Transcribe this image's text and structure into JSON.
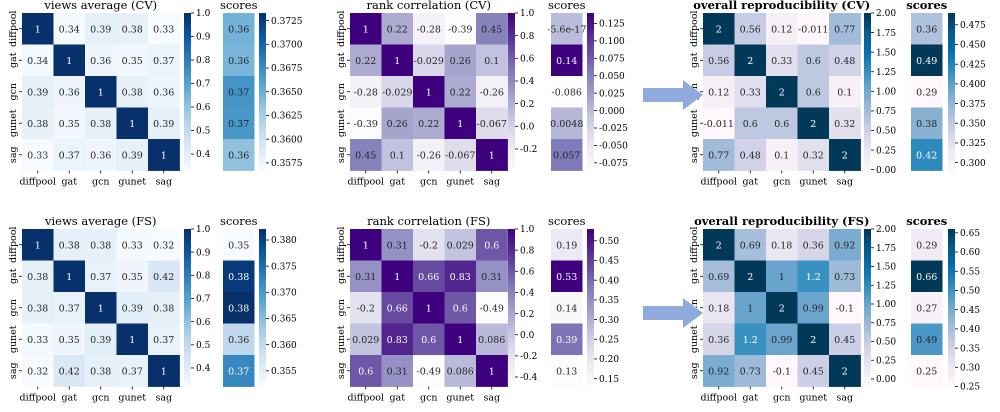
{
  "colormaps": {
    "Blues": [
      "#f7fbff",
      "#deebf7",
      "#c6dbef",
      "#9ecae1",
      "#6baed6",
      "#4292c6",
      "#2171b5",
      "#08519c",
      "#08306b"
    ],
    "Purples": [
      "#fcfbfd",
      "#efedf5",
      "#dadaeb",
      "#bcbddc",
      "#9e9ac8",
      "#807dba",
      "#6a51a3",
      "#54278f",
      "#3f007d"
    ],
    "PuBu": [
      "#fff7fb",
      "#ece7f2",
      "#d0d1e6",
      "#a6bddb",
      "#74a9cf",
      "#3690c0",
      "#0570b0",
      "#045a8d",
      "#023858"
    ]
  },
  "arrow_color": "#8faadc",
  "chart_data": [
    {
      "type": "heatmap",
      "id": "cv-views",
      "title": "views average (CV)",
      "title_bold": false,
      "cmap": "Blues",
      "categories": [
        "diffpool",
        "gat",
        "gcn",
        "gunet",
        "sag"
      ],
      "matrix": [
        [
          1,
          0.34,
          0.39,
          0.38,
          0.33
        ],
        [
          0.34,
          1,
          0.36,
          0.35,
          0.37
        ],
        [
          0.39,
          0.36,
          1,
          0.38,
          0.36
        ],
        [
          0.38,
          0.35,
          0.38,
          1,
          0.39
        ],
        [
          0.33,
          0.37,
          0.36,
          0.39,
          1
        ]
      ],
      "labels": [
        [
          "1",
          "0.34",
          "0.39",
          "0.38",
          "0.33"
        ],
        [
          "0.34",
          "1",
          "0.36",
          "0.35",
          "0.37"
        ],
        [
          "0.39",
          "0.36",
          "1",
          "0.38",
          "0.36"
        ],
        [
          "0.38",
          "0.35",
          "0.38",
          "1",
          "0.39"
        ],
        [
          "0.33",
          "0.37",
          "0.36",
          "0.39",
          "1"
        ]
      ],
      "vmin": 0.33,
      "vmax": 1.0,
      "colorbar_ticks": [
        "0.4",
        "0.5",
        "0.6",
        "0.7",
        "0.8",
        "0.9",
        "1.0"
      ],
      "scores": {
        "title": "scores",
        "values": [
          0.3647,
          0.3644,
          0.3669,
          0.3667,
          0.3635
        ],
        "labels": [
          "0.36",
          "0.36",
          "0.37",
          "0.37",
          "0.36"
        ],
        "vmin": 0.3567,
        "vmax": 0.3733,
        "colorbar_ticks": [
          "0.3575",
          "0.3600",
          "0.3625",
          "0.3650",
          "0.3675",
          "0.3700",
          "0.3725"
        ]
      }
    },
    {
      "type": "heatmap",
      "id": "cv-rank",
      "title": "rank correlation (CV)",
      "title_bold": false,
      "cmap": "Purples",
      "categories": [
        "diffpool",
        "gat",
        "gcn",
        "gunet",
        "sag"
      ],
      "matrix": [
        [
          1,
          0.22,
          -0.28,
          -0.39,
          0.45
        ],
        [
          0.22,
          1,
          -0.029,
          0.26,
          0.1
        ],
        [
          -0.28,
          -0.029,
          1,
          0.22,
          -0.26
        ],
        [
          -0.39,
          0.26,
          0.22,
          1,
          -0.067
        ],
        [
          0.45,
          0.1,
          -0.26,
          -0.067,
          1
        ]
      ],
      "labels": [
        [
          "1",
          "0.22",
          "-0.28",
          "-0.39",
          "0.45"
        ],
        [
          "0.22",
          "1",
          "-0.029",
          "0.26",
          "0.1"
        ],
        [
          "-0.28",
          "-0.029",
          "1",
          "0.22",
          "-0.26"
        ],
        [
          "-0.39",
          "0.26",
          "0.22",
          "1",
          "-0.067"
        ],
        [
          "0.45",
          "0.1",
          "-0.26",
          "-0.067",
          "1"
        ]
      ],
      "vmin": -0.39,
      "vmax": 1.0,
      "colorbar_ticks": [
        "-0.2",
        "0.0",
        "0.2",
        "0.4",
        "0.6",
        "0.8",
        "1.0"
      ],
      "scores": {
        "title": "scores",
        "values": [
          -5.6e-17,
          0.14,
          -0.086,
          0.0048,
          0.057
        ],
        "labels": [
          "-5.6e-17",
          "0.14",
          "-0.086",
          "0.0048",
          "0.057"
        ],
        "vmin": -0.086,
        "vmax": 0.14,
        "colorbar_ticks": [
          "-0.075",
          "-0.050",
          "-0.025",
          "0.000",
          "0.025",
          "0.050",
          "0.075",
          "0.100",
          "0.125"
        ]
      }
    },
    {
      "type": "heatmap",
      "id": "cv-overall",
      "title": "overall reproducibility (CV)",
      "title_bold": true,
      "cmap": "PuBu",
      "categories": [
        "diffpool",
        "gat",
        "gcn",
        "gunet",
        "sag"
      ],
      "matrix": [
        [
          2,
          0.56,
          0.12,
          -0.011,
          0.77
        ],
        [
          0.56,
          2,
          0.33,
          0.6,
          0.48
        ],
        [
          0.12,
          0.33,
          2,
          0.6,
          0.1
        ],
        [
          -0.011,
          0.6,
          0.6,
          2,
          0.32
        ],
        [
          0.77,
          0.48,
          0.1,
          0.32,
          2
        ]
      ],
      "labels": [
        [
          "2",
          "0.56",
          "0.12",
          "-0.011",
          "0.77"
        ],
        [
          "0.56",
          "2",
          "0.33",
          "0.6",
          "0.48"
        ],
        [
          "0.12",
          "0.33",
          "2",
          "0.6",
          "0.1"
        ],
        [
          "-0.011",
          "0.6",
          "0.6",
          "2",
          "0.32"
        ],
        [
          "0.77",
          "0.48",
          "0.1",
          "0.32",
          "2"
        ]
      ],
      "vmin": -0.011,
      "vmax": 2.0,
      "colorbar_ticks": [
        "0.00",
        "0.25",
        "0.50",
        "0.75",
        "1.00",
        "1.25",
        "1.50",
        "1.75",
        "2.00"
      ],
      "scores": {
        "title": "scores",
        "values": [
          0.36,
          0.49,
          0.29,
          0.38,
          0.42
        ],
        "labels": [
          "0.36",
          "0.49",
          "0.29",
          "0.38",
          "0.42"
        ],
        "vmin": 0.29,
        "vmax": 0.49,
        "colorbar_ticks": [
          "0.300",
          "0.325",
          "0.350",
          "0.375",
          "0.400",
          "0.425",
          "0.450",
          "0.475"
        ]
      }
    },
    {
      "type": "heatmap",
      "id": "fs-views",
      "title": "views average (FS)",
      "title_bold": false,
      "cmap": "Blues",
      "categories": [
        "diffpool",
        "gat",
        "gcn",
        "gunet",
        "sag"
      ],
      "matrix": [
        [
          1,
          0.38,
          0.38,
          0.33,
          0.32
        ],
        [
          0.38,
          1,
          0.37,
          0.35,
          0.42
        ],
        [
          0.38,
          0.37,
          1,
          0.39,
          0.38
        ],
        [
          0.33,
          0.35,
          0.39,
          1,
          0.37
        ],
        [
          0.32,
          0.42,
          0.38,
          0.37,
          1
        ]
      ],
      "labels": [
        [
          "1",
          "0.38",
          "0.38",
          "0.33",
          "0.32"
        ],
        [
          "0.38",
          "1",
          "0.37",
          "0.35",
          "0.42"
        ],
        [
          "0.38",
          "0.37",
          "1",
          "0.39",
          "0.38"
        ],
        [
          "0.33",
          "0.35",
          "0.39",
          "1",
          "0.37"
        ],
        [
          "0.32",
          "0.42",
          "0.38",
          "0.37",
          "1"
        ]
      ],
      "vmin": 0.32,
      "vmax": 1.0,
      "colorbar_ticks": [
        "0.4",
        "0.5",
        "0.6",
        "0.7",
        "0.8",
        "0.9",
        "1.0"
      ],
      "scores": {
        "title": "scores",
        "values": [
          0.352,
          0.3811,
          0.3821,
          0.3601,
          0.3721
        ],
        "labels": [
          "0.35",
          "0.38",
          "0.38",
          "0.36",
          "0.37"
        ],
        "vmin": 0.352,
        "vmax": 0.3821,
        "colorbar_ticks": [
          "0.355",
          "0.360",
          "0.365",
          "0.370",
          "0.375",
          "0.380"
        ]
      }
    },
    {
      "type": "heatmap",
      "id": "fs-rank",
      "title": "rank correlation (FS)",
      "title_bold": false,
      "cmap": "Purples",
      "categories": [
        "diffpool",
        "gat",
        "gcn",
        "gunet",
        "sag"
      ],
      "matrix": [
        [
          1,
          0.31,
          -0.2,
          0.029,
          0.6
        ],
        [
          0.31,
          1,
          0.66,
          0.83,
          0.31
        ],
        [
          -0.2,
          0.66,
          1,
          0.6,
          -0.49
        ],
        [
          0.029,
          0.83,
          0.6,
          1,
          0.086
        ],
        [
          0.6,
          0.31,
          -0.49,
          0.086,
          1
        ]
      ],
      "labels": [
        [
          "1",
          "0.31",
          "-0.2",
          "0.029",
          "0.6"
        ],
        [
          "0.31",
          "1",
          "0.66",
          "0.83",
          "0.31"
        ],
        [
          "-0.2",
          "0.66",
          "1",
          "0.6",
          "-0.49"
        ],
        [
          "0.029",
          "0.83",
          "0.6",
          "1",
          "0.086"
        ],
        [
          "0.6",
          "0.31",
          "-0.49",
          "0.086",
          "1"
        ]
      ],
      "vmin": -0.49,
      "vmax": 1.0,
      "colorbar_ticks": [
        "-0.4",
        "-0.2",
        "0.0",
        "0.2",
        "0.4",
        "0.6",
        "0.8",
        "1.0"
      ],
      "scores": {
        "title": "scores",
        "values": [
          0.19,
          0.53,
          0.14,
          0.39,
          0.13
        ],
        "labels": [
          "0.19",
          "0.53",
          "0.14",
          "0.39",
          "0.13"
        ],
        "vmin": 0.13,
        "vmax": 0.53,
        "colorbar_ticks": [
          "0.15",
          "0.20",
          "0.25",
          "0.30",
          "0.35",
          "0.40",
          "0.45",
          "0.50"
        ]
      }
    },
    {
      "type": "heatmap",
      "id": "fs-overall",
      "title": "overall reproducibility (FS)",
      "title_bold": true,
      "cmap": "PuBu",
      "categories": [
        "diffpool",
        "gat",
        "gcn",
        "gunet",
        "sag"
      ],
      "matrix": [
        [
          2,
          0.69,
          0.18,
          0.36,
          0.92
        ],
        [
          0.69,
          2,
          1,
          1.2,
          0.73
        ],
        [
          0.18,
          1,
          2,
          0.99,
          -0.1
        ],
        [
          0.36,
          1.2,
          0.99,
          2,
          0.45
        ],
        [
          0.92,
          0.73,
          -0.1,
          0.45,
          2
        ]
      ],
      "labels": [
        [
          "2",
          "0.69",
          "0.18",
          "0.36",
          "0.92"
        ],
        [
          "0.69",
          "2",
          "1",
          "1.2",
          "0.73"
        ],
        [
          "0.18",
          "1",
          "2",
          "0.99",
          "-0.1"
        ],
        [
          "0.36",
          "1.2",
          "0.99",
          "2",
          "0.45"
        ],
        [
          "0.92",
          "0.73",
          "-0.1",
          "0.45",
          "2"
        ]
      ],
      "vmin": -0.1,
      "vmax": 2.0,
      "colorbar_ticks": [
        "0.00",
        "0.25",
        "0.50",
        "0.75",
        "1.00",
        "1.25",
        "1.50",
        "1.75",
        "2.00"
      ],
      "scores": {
        "title": "scores",
        "values": [
          0.29,
          0.66,
          0.27,
          0.49,
          0.25
        ],
        "labels": [
          "0.29",
          "0.66",
          "0.27",
          "0.49",
          "0.25"
        ],
        "vmin": 0.25,
        "vmax": 0.66,
        "colorbar_ticks": [
          "0.25",
          "0.30",
          "0.35",
          "0.40",
          "0.45",
          "0.50",
          "0.55",
          "0.60",
          "0.65"
        ]
      }
    }
  ]
}
